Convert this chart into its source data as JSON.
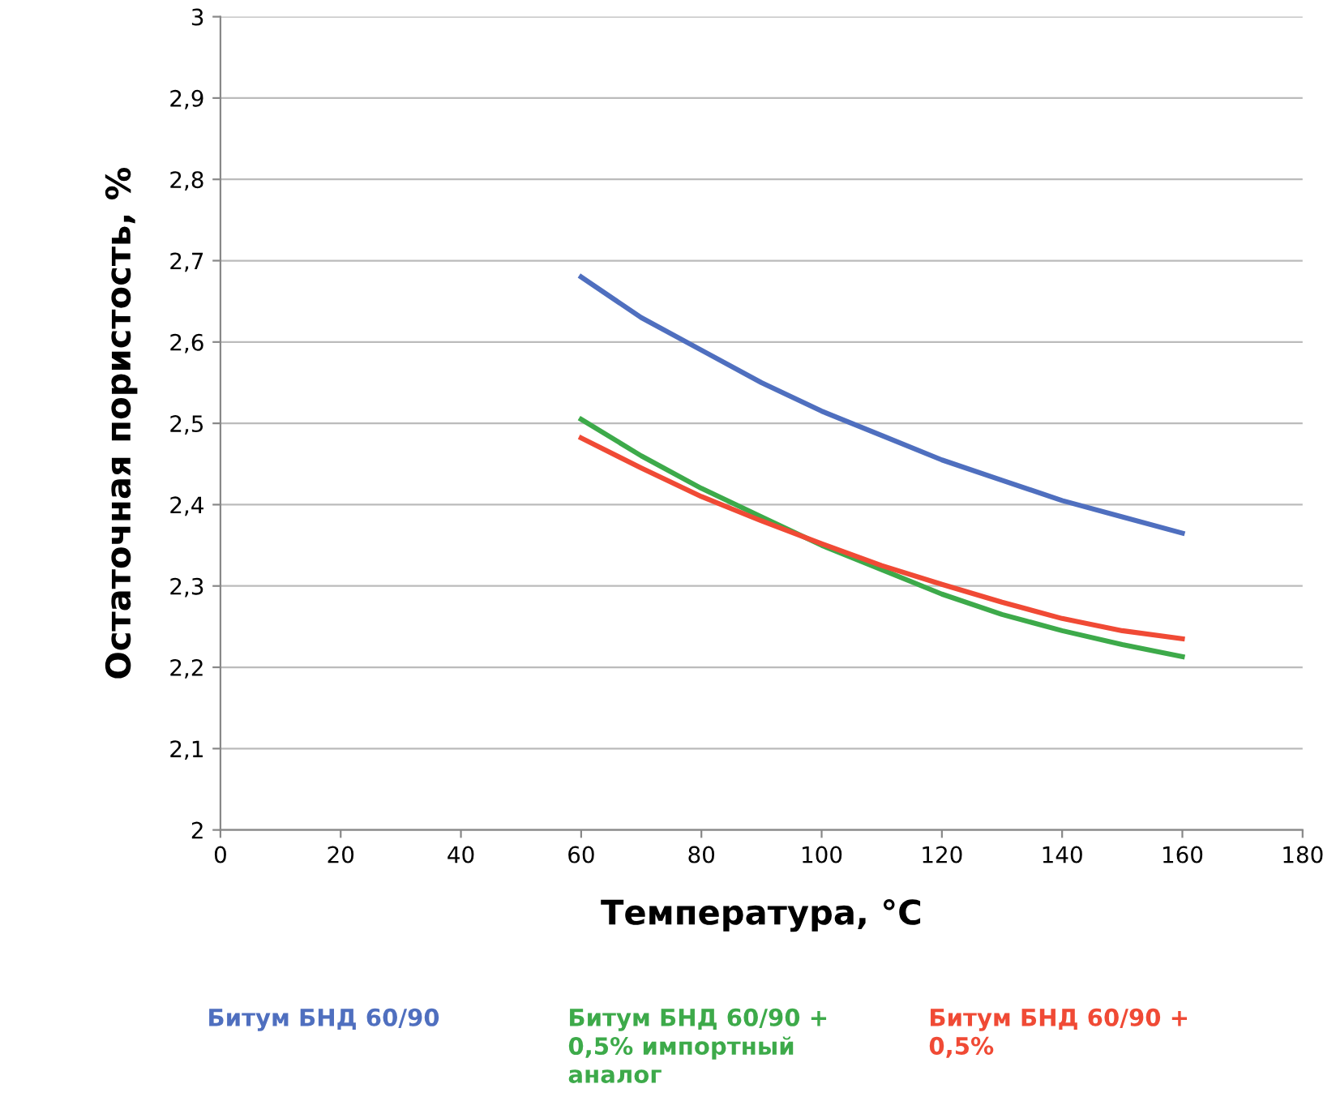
{
  "chart_data": {
    "type": "line",
    "xlabel": "Температура, °C",
    "ylabel": "Остаточная пористость, %",
    "x": [
      60,
      70,
      80,
      90,
      100,
      110,
      120,
      130,
      140,
      150,
      160
    ],
    "series": [
      {
        "name": "Битум БНД 60/90",
        "color": "#4f6fbf",
        "values": [
          2.68,
          2.63,
          2.59,
          2.55,
          2.515,
          2.485,
          2.455,
          2.43,
          2.405,
          2.385,
          2.365
        ]
      },
      {
        "name": "Битум БНД 60/90 +\n0,5% импортный\nаналог",
        "color": "#3daa4a",
        "values": [
          2.505,
          2.46,
          2.42,
          2.385,
          2.35,
          2.32,
          2.29,
          2.265,
          2.245,
          2.228,
          2.213
        ]
      },
      {
        "name": "Битум БНД 60/90 +\n0,5%",
        "color": "#f04a35",
        "values": [
          2.482,
          2.445,
          2.41,
          2.38,
          2.352,
          2.325,
          2.302,
          2.28,
          2.26,
          2.245,
          2.235
        ]
      }
    ],
    "xlim": [
      0,
      180
    ],
    "xticks": [
      0,
      20,
      40,
      60,
      80,
      100,
      120,
      140,
      160,
      180
    ],
    "ylim": [
      2,
      3
    ],
    "yticks": [
      {
        "value": 2,
        "label": "2"
      },
      {
        "value": 2.1,
        "label": "2,1"
      },
      {
        "value": 2.2,
        "label": "2,2"
      },
      {
        "value": 2.3,
        "label": "2,3"
      },
      {
        "value": 2.4,
        "label": "2,4"
      },
      {
        "value": 2.5,
        "label": "2,5"
      },
      {
        "value": 2.6,
        "label": "2,6"
      },
      {
        "value": 2.7,
        "label": "2,7"
      },
      {
        "value": 2.8,
        "label": "2,8"
      },
      {
        "value": 2.9,
        "label": "2,9"
      },
      {
        "value": 3,
        "label": "3"
      }
    ],
    "grid": "y",
    "legend": "bottom",
    "marker": "none",
    "line_style": "solid"
  }
}
